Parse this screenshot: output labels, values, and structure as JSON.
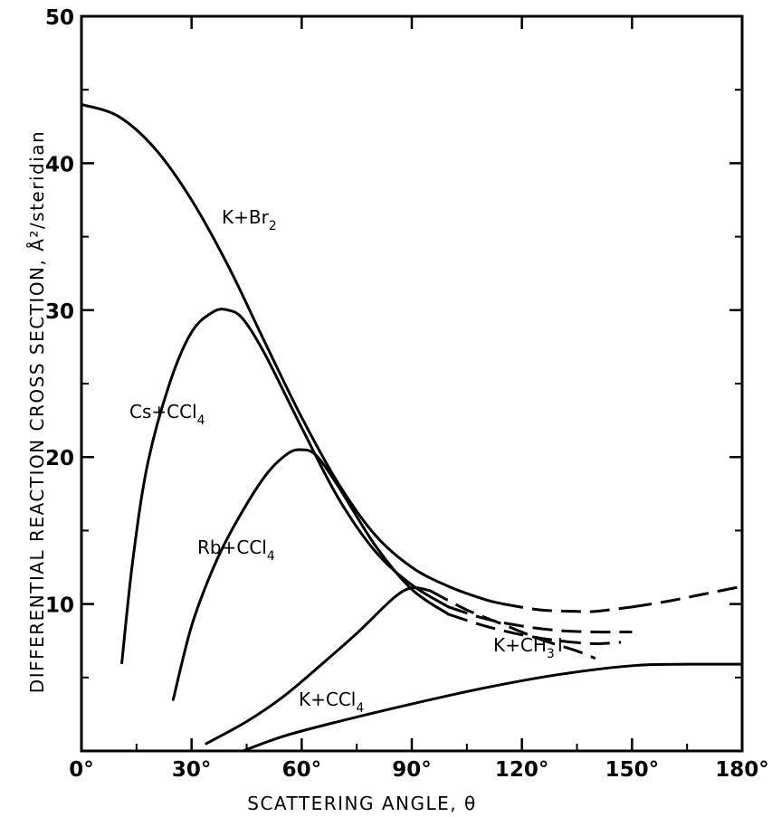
{
  "chart_data": {
    "type": "line",
    "title": "",
    "xlabel": "SCATTERING ANGLE, θ",
    "ylabel": "DIFFERENTIAL REACTION CROSS SECTION, Å²/steridian",
    "xlim": [
      0,
      180
    ],
    "ylim": [
      0,
      50
    ],
    "x_ticks": [
      "0°",
      "30°",
      "60°",
      "90°",
      "120°",
      "150°",
      "180°"
    ],
    "y_ticks": [
      "10",
      "20",
      "30",
      "40",
      "50"
    ],
    "grid": false,
    "series": [
      {
        "name": "K+Br2",
        "label_main": "K+Br",
        "label_sub": "2",
        "solid": {
          "x": [
            0,
            10,
            20,
            30,
            40,
            50,
            60,
            70,
            80,
            90,
            100,
            110,
            115
          ],
          "y": [
            44,
            43.2,
            41,
            37.5,
            33,
            27.8,
            22.7,
            18.2,
            14.7,
            12.5,
            11.2,
            10.3,
            10
          ]
        },
        "dashed": {
          "x": [
            115,
            125,
            135,
            140,
            150
          ],
          "y": [
            10,
            9.6,
            9.5,
            9.5,
            9.8
          ]
        }
      },
      {
        "name": "Cs+CCl4",
        "label_main": "Cs+CCl",
        "label_sub": "4",
        "solid": {
          "x": [
            11,
            14,
            18,
            24,
            30,
            36,
            40,
            44,
            50,
            60,
            70,
            80,
            90,
            100
          ],
          "y": [
            6,
            13,
            19.5,
            25,
            28.5,
            29.9,
            30,
            29.4,
            27,
            22,
            17.2,
            13.6,
            11.3,
            9.8
          ]
        },
        "dashed": {
          "x": [
            100,
            110,
            120,
            130,
            140,
            150
          ],
          "y": [
            9.8,
            9,
            8.5,
            8.2,
            8.1,
            8.1
          ]
        }
      },
      {
        "name": "Rb+CCl4",
        "label_main": "Rb+CCl",
        "label_sub": "4",
        "solid": {
          "x": [
            25,
            30,
            36,
            42,
            50,
            56,
            60,
            64,
            70,
            80,
            90,
            100
          ],
          "y": [
            3.5,
            8.5,
            12.5,
            15.5,
            18.7,
            20.2,
            20.5,
            20.1,
            18,
            14,
            11,
            9.3
          ]
        },
        "dashed": {
          "x": [
            100,
            110,
            120,
            130,
            140,
            147
          ],
          "y": [
            9.3,
            8.5,
            7.9,
            7.5,
            7.3,
            7.4
          ]
        }
      },
      {
        "name": "K+CCl4",
        "label_main": "K+CCl",
        "label_sub": "4",
        "solid": {
          "x": [
            34,
            45,
            55,
            65,
            75,
            85,
            90,
            95
          ],
          "y": [
            0.5,
            2,
            3.7,
            5.8,
            8,
            10.4,
            11.1,
            10.9
          ]
        },
        "dashed": {
          "x": [
            95,
            105,
            115,
            125,
            135,
            140
          ],
          "y": [
            10.9,
            9.6,
            8.6,
            7.6,
            6.8,
            6.3
          ]
        }
      },
      {
        "name": "K+CH3I",
        "label_main": "K+CH",
        "label_sub": "3",
        "label_tail": "I",
        "solid": {
          "x": [
            44,
            55,
            70,
            90,
            110,
            130,
            150,
            165,
            180
          ],
          "y": [
            0,
            1,
            2,
            3.2,
            4.3,
            5.2,
            5.8,
            5.9,
            5.9
          ]
        },
        "dashed": {
          "x": [],
          "y": []
        }
      }
    ]
  }
}
